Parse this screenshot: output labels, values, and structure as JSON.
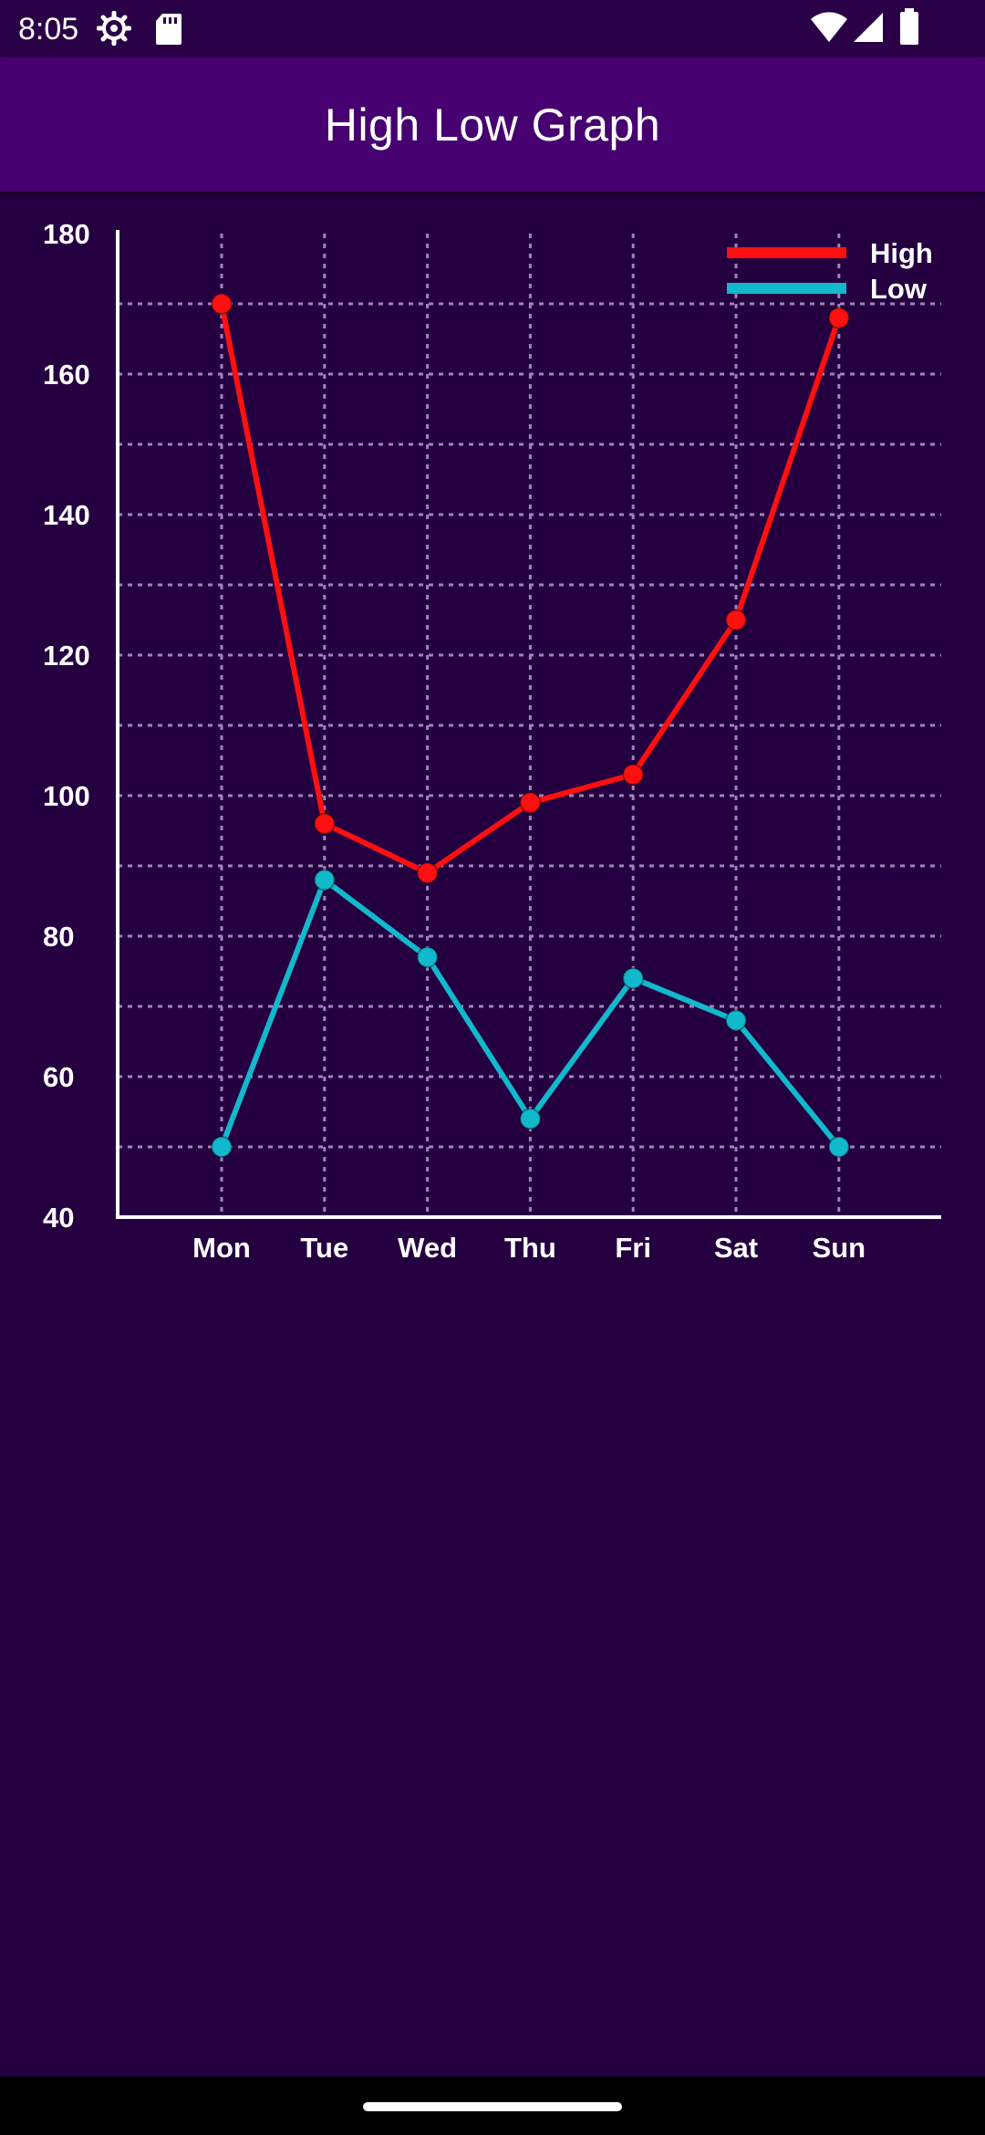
{
  "status_bar": {
    "time": "8:05",
    "icons": [
      "settings-gear-icon",
      "sd-card-icon",
      "wifi-icon",
      "cell-signal-icon",
      "battery-icon"
    ]
  },
  "app_bar": {
    "title": "High Low Graph"
  },
  "colors": {
    "background": "#250041",
    "app_bar": "#470070",
    "high": "#ff1010",
    "low": "#12b8cc",
    "grid": "#9e86b8",
    "axis": "#ffffff"
  },
  "chart_data": {
    "type": "line",
    "title": "",
    "xlabel": "",
    "ylabel": "",
    "categories": [
      "Mon",
      "Tue",
      "Wed",
      "Thu",
      "Fri",
      "Sat",
      "Sun"
    ],
    "series": [
      {
        "name": "High",
        "color": "#ff1010",
        "values": [
          170,
          96,
          89,
          99,
          103,
          125,
          168
        ]
      },
      {
        "name": "Low",
        "color": "#12b8cc",
        "values": [
          50,
          88,
          77,
          54,
          74,
          68,
          50
        ]
      }
    ],
    "ylim": [
      40,
      180
    ],
    "yticks": [
      40,
      60,
      80,
      100,
      120,
      140,
      160,
      180
    ],
    "grid": true,
    "legend_position": "top-right"
  }
}
